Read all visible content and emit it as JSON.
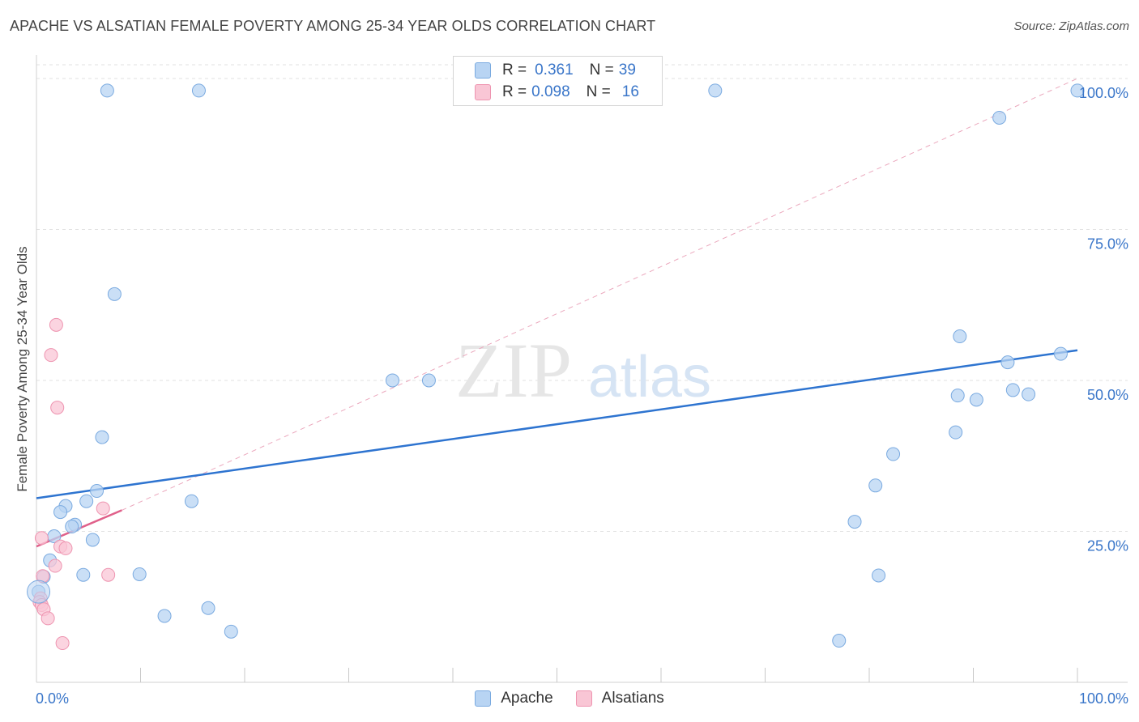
{
  "header": {
    "title": "APACHE VS ALSATIAN FEMALE POVERTY AMONG 25-34 YEAR OLDS CORRELATION CHART",
    "source": "Source: ZipAtlas.com"
  },
  "legend": {
    "rows": [
      {
        "r_label": "R =",
        "r_value": "0.361",
        "n_label": "N =",
        "n_value": "39"
      },
      {
        "r_label": "R =",
        "r_value": "0.098",
        "n_label": "N =",
        "n_value": "16"
      }
    ]
  },
  "colors": {
    "apache_fill": "#b8d4f3",
    "apache_stroke": "#7aaae0",
    "apache_line": "#2e74d0",
    "alsatian_fill": "#f9c6d5",
    "alsatian_stroke": "#ee94b0",
    "alsatian_line": "#e0608a",
    "tick_label": "#3a76c9"
  },
  "watermark": {
    "zip": "ZIP",
    "atlas": "atlas"
  },
  "chart_data": {
    "type": "scatter",
    "title": "APACHE VS ALSATIAN FEMALE POVERTY AMONG 25-34 YEAR OLDS CORRELATION CHART",
    "xlabel": "",
    "ylabel": "Female Poverty Among 25-34 Year Olds",
    "xlim": [
      0,
      100
    ],
    "ylim": [
      0,
      102
    ],
    "x_tick_labels": [
      {
        "value": 0,
        "label": "0.0%"
      },
      {
        "value": 100,
        "label": "100.0%"
      }
    ],
    "y_tick_labels": [
      {
        "value": 25,
        "label": "25.0%"
      },
      {
        "value": 50,
        "label": "50.0%"
      },
      {
        "value": 75,
        "label": "75.0%"
      },
      {
        "value": 100,
        "label": "100.0%"
      }
    ],
    "series": [
      {
        "name": "Apache",
        "R": 0.361,
        "N": 39,
        "trend": {
          "x0": 0,
          "y0": 30.5,
          "x1": 100,
          "y1": 55.0
        },
        "points": [
          {
            "x": 6.8,
            "y": 98.0
          },
          {
            "x": 15.6,
            "y": 98.0
          },
          {
            "x": 65.2,
            "y": 98.0
          },
          {
            "x": 100.0,
            "y": 98.0
          },
          {
            "x": 92.5,
            "y": 93.5
          },
          {
            "x": 7.5,
            "y": 64.3
          },
          {
            "x": 88.7,
            "y": 57.3
          },
          {
            "x": 98.4,
            "y": 54.4
          },
          {
            "x": 93.3,
            "y": 53.0
          },
          {
            "x": 34.2,
            "y": 50.0
          },
          {
            "x": 37.7,
            "y": 50.0
          },
          {
            "x": 93.8,
            "y": 48.4
          },
          {
            "x": 95.3,
            "y": 47.7
          },
          {
            "x": 88.5,
            "y": 47.5
          },
          {
            "x": 90.3,
            "y": 46.8
          },
          {
            "x": 88.3,
            "y": 41.4
          },
          {
            "x": 6.3,
            "y": 40.6
          },
          {
            "x": 82.3,
            "y": 37.8
          },
          {
            "x": 80.6,
            "y": 32.6
          },
          {
            "x": 5.8,
            "y": 31.7
          },
          {
            "x": 14.9,
            "y": 30.0
          },
          {
            "x": 4.8,
            "y": 30.0
          },
          {
            "x": 2.8,
            "y": 29.2
          },
          {
            "x": 2.3,
            "y": 28.2
          },
          {
            "x": 3.7,
            "y": 26.1
          },
          {
            "x": 3.4,
            "y": 25.8
          },
          {
            "x": 1.7,
            "y": 24.2
          },
          {
            "x": 5.4,
            "y": 23.6
          },
          {
            "x": 78.6,
            "y": 26.6
          },
          {
            "x": 1.3,
            "y": 20.2
          },
          {
            "x": 4.5,
            "y": 17.8
          },
          {
            "x": 9.9,
            "y": 17.9
          },
          {
            "x": 0.7,
            "y": 17.5
          },
          {
            "x": 80.9,
            "y": 17.7
          },
          {
            "x": 0.2,
            "y": 15.0
          },
          {
            "x": 16.5,
            "y": 12.3
          },
          {
            "x": 12.3,
            "y": 11.0
          },
          {
            "x": 18.7,
            "y": 8.4
          },
          {
            "x": 77.1,
            "y": 6.9
          }
        ]
      },
      {
        "name": "Alsatians",
        "R": 0.098,
        "N": 16,
        "trend": {
          "x0": 0,
          "y0": 22.5,
          "x1": 8.2,
          "y1": 28.5
        },
        "reference_line": {
          "x0": 8.2,
          "y0": 28.5,
          "x1": 100,
          "y1": 100
        },
        "points": [
          {
            "x": 1.9,
            "y": 59.2
          },
          {
            "x": 1.4,
            "y": 54.2
          },
          {
            "x": 2.0,
            "y": 45.5
          },
          {
            "x": 6.4,
            "y": 28.8
          },
          {
            "x": 0.5,
            "y": 23.9
          },
          {
            "x": 2.3,
            "y": 22.5
          },
          {
            "x": 2.8,
            "y": 22.2
          },
          {
            "x": 1.8,
            "y": 19.3
          },
          {
            "x": 6.9,
            "y": 17.8
          },
          {
            "x": 0.6,
            "y": 17.6
          },
          {
            "x": 0.4,
            "y": 13.9
          },
          {
            "x": 0.3,
            "y": 13.3
          },
          {
            "x": 0.5,
            "y": 12.8
          },
          {
            "x": 0.7,
            "y": 12.1
          },
          {
            "x": 1.1,
            "y": 10.6
          },
          {
            "x": 2.5,
            "y": 6.5
          }
        ]
      }
    ],
    "grid": true,
    "legend_position": "top-center"
  }
}
